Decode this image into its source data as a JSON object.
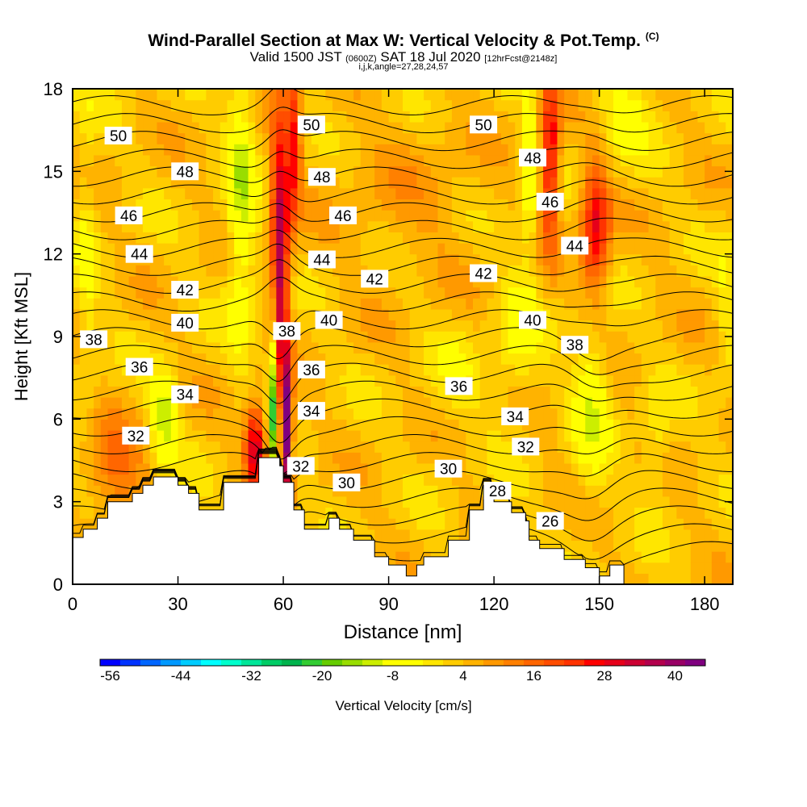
{
  "header": {
    "title": "Wind-Parallel Section at Max W: Vertical Velocity & Pot.Temp.",
    "copyright": "(C)",
    "valid_main": "Valid 1500 JST",
    "valid_utc": "(0600Z)",
    "valid_date": "SAT 18 Jul 2020",
    "valid_fcst": "[12hrFcst@2148z]",
    "params": "i,j,k,angle=27,28,24,57"
  },
  "colorbar": {
    "label": "Vertical Velocity [cm/s]",
    "tick_labels": [
      "-56",
      "-44",
      "-32",
      "-20",
      "-8",
      "4",
      "16",
      "28",
      "40"
    ],
    "colors": [
      "#0000ff",
      "#0033ff",
      "#0066ff",
      "#0099ff",
      "#00ccff",
      "#00ffff",
      "#00ffcc",
      "#00e699",
      "#00cc66",
      "#00b34d",
      "#33cc33",
      "#66cc00",
      "#99dd00",
      "#ccee00",
      "#ffff00",
      "#ffff00",
      "#ffe600",
      "#ffcc00",
      "#ffb300",
      "#ff9900",
      "#ff8000",
      "#ff6600",
      "#ff4d00",
      "#ff3300",
      "#ff0000",
      "#e6001a",
      "#cc0033",
      "#b3004d",
      "#990066",
      "#800080"
    ]
  },
  "chart_data": {
    "type": "heatmap",
    "title": "Wind-Parallel Section at Max W: Vertical Velocity & Pot.Temp.",
    "xlabel": "Distance [nm]",
    "ylabel": "Height [Kft MSL]",
    "xlim": [
      0,
      188
    ],
    "ylim": [
      0,
      18
    ],
    "x_ticks": [
      0,
      30,
      60,
      90,
      120,
      150,
      180
    ],
    "y_ticks": [
      0,
      3,
      6,
      9,
      12,
      15,
      18
    ],
    "colorbar_range": [
      -56,
      48
    ],
    "terrain": {
      "x": [
        0,
        0,
        3,
        3,
        7,
        7,
        10,
        10,
        17,
        17,
        20,
        20,
        23,
        23,
        30,
        30,
        33,
        33,
        36,
        36,
        43,
        43,
        53,
        53,
        59,
        59,
        60,
        60,
        63,
        63,
        66,
        66,
        73,
        73,
        76,
        76,
        80,
        80,
        86,
        86,
        90,
        90,
        95,
        95,
        98,
        98,
        100,
        100,
        107,
        107,
        113,
        113,
        117,
        117,
        120,
        120,
        125,
        125,
        129,
        129,
        130,
        130,
        133,
        133,
        140,
        140,
        146,
        146,
        150,
        150,
        153,
        153,
        155,
        155,
        157,
        157,
        188,
        188
      ],
      "y": [
        0,
        1.7,
        1.7,
        2,
        2,
        2.4,
        2.4,
        3,
        3,
        3.3,
        3.3,
        3.6,
        3.6,
        3.9,
        3.9,
        3.6,
        3.6,
        3.3,
        3.3,
        2.7,
        2.7,
        3.7,
        3.7,
        4.6,
        4.6,
        4.3,
        4.3,
        3.7,
        3.7,
        2.7,
        2.7,
        2.0,
        2.0,
        2.4,
        2.4,
        2.0,
        2.0,
        1.6,
        1.6,
        1.0,
        1.0,
        0.7,
        0.7,
        0.3,
        0.3,
        0.7,
        0.7,
        1.0,
        1.0,
        1.6,
        1.6,
        2.7,
        2.7,
        3.6,
        3.6,
        3.0,
        3.0,
        2.6,
        2.6,
        2.3,
        2.3,
        1.6,
        1.6,
        1.3,
        1.3,
        0.9,
        0.9,
        0.6,
        0.6,
        0.3,
        0.3,
        0.7,
        0.7,
        0.7,
        0.7,
        0
      ]
    },
    "features": [
      {
        "x": 59,
        "y": 12,
        "xw": 2.5,
        "yw": 5,
        "w": 36
      },
      {
        "x": 57,
        "y": 7,
        "xw": 1.4,
        "yw": 3,
        "w": -30
      },
      {
        "x": 61,
        "y": 5.5,
        "xw": 1.5,
        "yw": 2.5,
        "w": 44
      },
      {
        "x": 52,
        "y": 5,
        "xw": 3,
        "yw": 1.6,
        "w": 30
      },
      {
        "x": 48,
        "y": 14,
        "xw": 4,
        "yw": 5,
        "w": -14
      },
      {
        "x": 63,
        "y": 16,
        "xw": 2,
        "yw": 3,
        "w": 22
      },
      {
        "x": 26,
        "y": 6,
        "xw": 4,
        "yw": 1.6,
        "w": -16
      },
      {
        "x": 12,
        "y": 4,
        "xw": 8,
        "yw": 2,
        "w": 12
      },
      {
        "x": 136,
        "y": 15.5,
        "xw": 2.5,
        "yw": 3,
        "w": 28
      },
      {
        "x": 130,
        "y": 15,
        "xw": 2,
        "yw": 3,
        "w": -14
      },
      {
        "x": 149,
        "y": 13,
        "xw": 4,
        "yw": 2.5,
        "w": 26
      },
      {
        "x": 148,
        "y": 6.5,
        "xw": 5,
        "yw": 3,
        "w": -12
      },
      {
        "x": 127,
        "y": 9,
        "xw": 6,
        "yw": 2.5,
        "w": -8
      },
      {
        "x": 166,
        "y": 5,
        "xw": 4,
        "yw": 2,
        "w": -6
      },
      {
        "x": 110,
        "y": 7.5,
        "xw": 10,
        "yw": 2,
        "w": -4
      },
      {
        "x": 156,
        "y": 17,
        "xw": 8,
        "yw": 2,
        "w": -8
      },
      {
        "x": 4,
        "y": 12,
        "xw": 3,
        "yw": 6,
        "w": -6
      },
      {
        "x": 186,
        "y": 10,
        "xw": 3,
        "yw": 3,
        "w": -5
      },
      {
        "x": 95,
        "y": 14,
        "xw": 20,
        "yw": 3,
        "w": 4
      }
    ],
    "theta_contours": [
      {
        "value": 26,
        "label": "26",
        "label_x": 136,
        "label_y": 2.3
      },
      {
        "value": 28,
        "label": "28",
        "label_x": 121,
        "label_y": 3.4
      },
      {
        "value": 30,
        "label": "30",
        "label_x": 78,
        "label_y": 3.7
      },
      {
        "value": 30,
        "label": "30",
        "label_x": 107,
        "label_y": 4.2
      },
      {
        "value": 32,
        "label": "32",
        "label_x": 18,
        "label_y": 5.4
      },
      {
        "value": 32,
        "label": "32",
        "label_x": 65,
        "label_y": 4.3
      },
      {
        "value": 32,
        "label": "32",
        "label_x": 129,
        "label_y": 5.0
      },
      {
        "value": 34,
        "label": "34",
        "label_x": 32,
        "label_y": 6.9
      },
      {
        "value": 34,
        "label": "34",
        "label_x": 68,
        "label_y": 6.3
      },
      {
        "value": 34,
        "label": "34",
        "label_x": 126,
        "label_y": 6.1
      },
      {
        "value": 36,
        "label": "36",
        "label_x": 19,
        "label_y": 7.9
      },
      {
        "value": 36,
        "label": "36",
        "label_x": 68,
        "label_y": 7.8
      },
      {
        "value": 36,
        "label": "36",
        "label_x": 110,
        "label_y": 7.2
      },
      {
        "value": 38,
        "label": "38",
        "label_x": 6,
        "label_y": 8.9
      },
      {
        "value": 38,
        "label": "38",
        "label_x": 61,
        "label_y": 9.2
      },
      {
        "value": 38,
        "label": "38",
        "label_x": 143,
        "label_y": 8.7
      },
      {
        "value": 40,
        "label": "40",
        "label_x": 32,
        "label_y": 9.5
      },
      {
        "value": 40,
        "label": "40",
        "label_x": 73,
        "label_y": 9.6
      },
      {
        "value": 40,
        "label": "40",
        "label_x": 131,
        "label_y": 9.6
      },
      {
        "value": 42,
        "label": "42",
        "label_x": 32,
        "label_y": 10.7
      },
      {
        "value": 42,
        "label": "42",
        "label_x": 86,
        "label_y": 11.1
      },
      {
        "value": 42,
        "label": "42",
        "label_x": 117,
        "label_y": 11.3
      },
      {
        "value": 44,
        "label": "44",
        "label_x": 19,
        "label_y": 12.0
      },
      {
        "value": 44,
        "label": "44",
        "label_x": 71,
        "label_y": 11.8
      },
      {
        "value": 44,
        "label": "44",
        "label_x": 143,
        "label_y": 12.3
      },
      {
        "value": 46,
        "label": "46",
        "label_x": 16,
        "label_y": 13.4
      },
      {
        "value": 46,
        "label": "46",
        "label_x": 77,
        "label_y": 13.4
      },
      {
        "value": 46,
        "label": "46",
        "label_x": 136,
        "label_y": 13.9
      },
      {
        "value": 48,
        "label": "48",
        "label_x": 32,
        "label_y": 15.0
      },
      {
        "value": 48,
        "label": "48",
        "label_x": 71,
        "label_y": 14.8
      },
      {
        "value": 48,
        "label": "48",
        "label_x": 131,
        "label_y": 15.5
      },
      {
        "value": 50,
        "label": "50",
        "label_x": 13,
        "label_y": 16.3
      },
      {
        "value": 50,
        "label": "50",
        "label_x": 68,
        "label_y": 16.7
      },
      {
        "value": 50,
        "label": "50",
        "label_x": 117,
        "label_y": 16.7
      }
    ],
    "theta_levels": [
      26,
      27,
      28,
      29,
      30,
      31,
      32,
      33,
      34,
      35,
      36,
      37,
      38,
      39,
      40,
      41,
      42,
      43,
      44,
      45,
      46,
      47,
      48,
      49,
      50,
      51
    ]
  }
}
